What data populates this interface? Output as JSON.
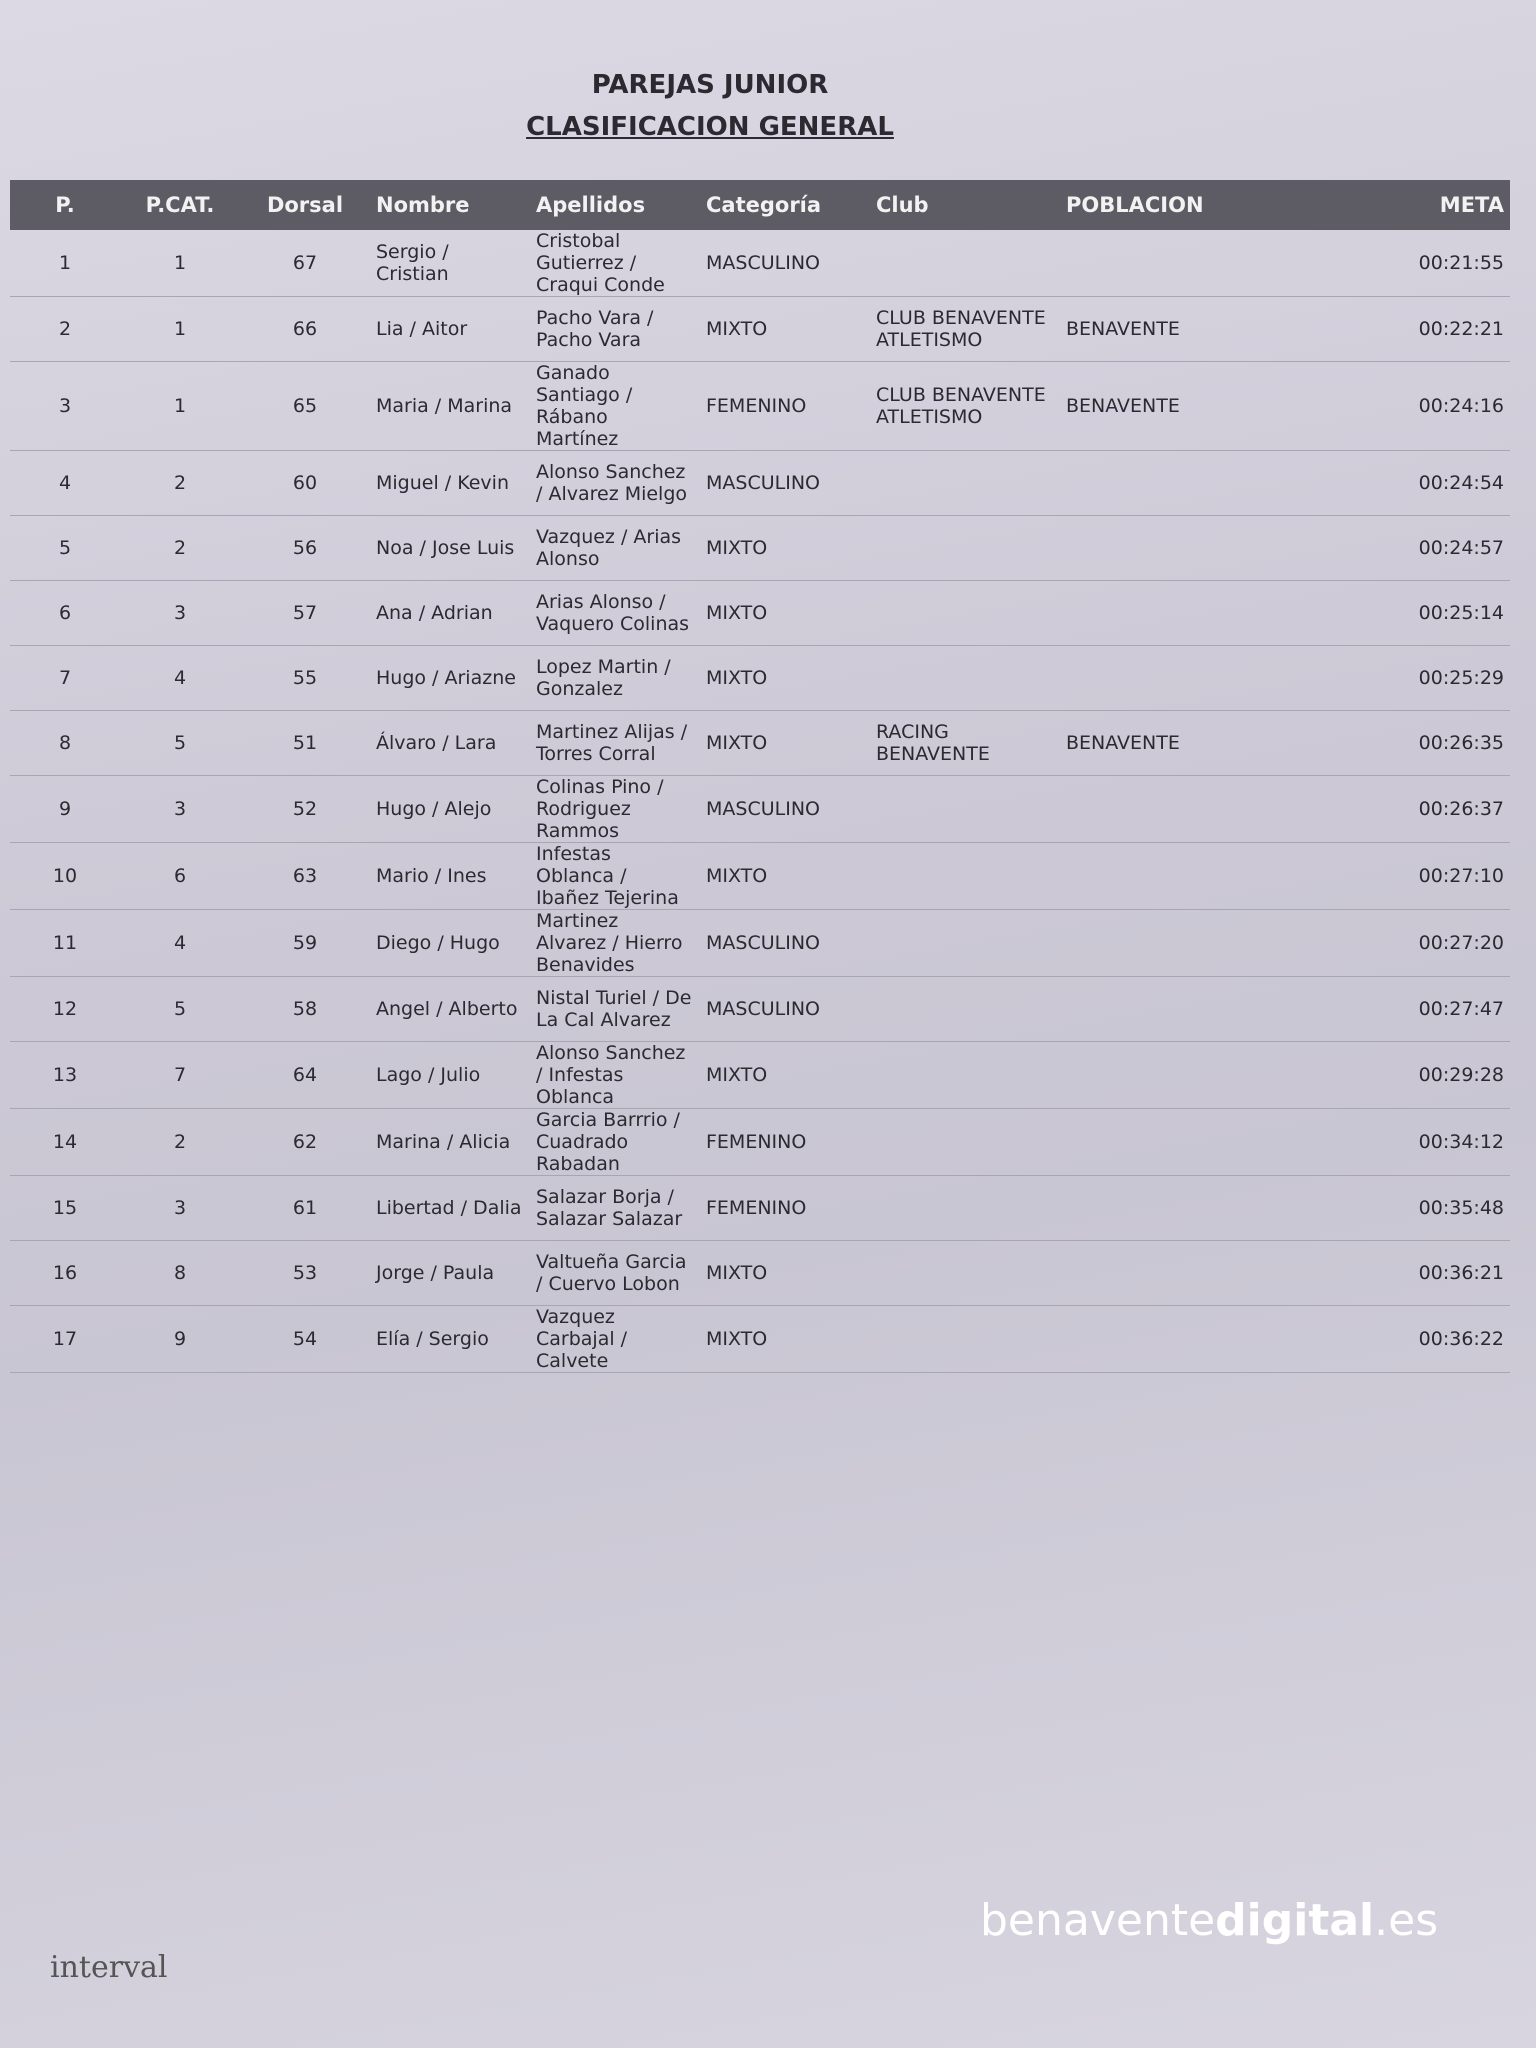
{
  "title": "PAREJAS JUNIOR",
  "subtitle": "CLASIFICACION GENERAL",
  "table": {
    "headers": [
      "P.",
      "P.CAT.",
      "Dorsal",
      "Nombre",
      "Apellidos",
      "Categoría",
      "Club",
      "POBLACION",
      "META"
    ],
    "rows": [
      {
        "p": 1,
        "pcat": 1,
        "dorsal": 67,
        "nombre": "Sergio / Cristian",
        "apellidos": "Cristobal Gutierrez / Craqui Conde",
        "categoria": "MASCULINO",
        "meta": "00:21:55"
      },
      {
        "p": 2,
        "pcat": 1,
        "dorsal": 66,
        "nombre": "Lia / Aitor",
        "apellidos": "Pacho Vara / Pacho Vara",
        "categoria": "MIXTO",
        "club": "CLUB BENAVENTE ATLETISMO",
        "poblacion": "BENAVENTE",
        "meta": "00:22:21"
      },
      {
        "p": 3,
        "pcat": 1,
        "dorsal": 65,
        "nombre": "Maria / Marina",
        "apellidos": "Ganado Santiago / Rábano Martínez",
        "categoria": "FEMENINO",
        "club": "CLUB BENAVENTE ATLETISMO",
        "poblacion": "BENAVENTE",
        "meta": "00:24:16"
      },
      {
        "p": 4,
        "pcat": 2,
        "dorsal": 60,
        "nombre": "Miguel / Kevin",
        "apellidos": "Alonso Sanchez / Alvarez Mielgo",
        "categoria": "MASCULINO",
        "meta": "00:24:54"
      },
      {
        "p": 5,
        "pcat": 2,
        "dorsal": 56,
        "nombre": "Noa / Jose Luis",
        "apellidos": "Vazquez / Arias Alonso",
        "categoria": "MIXTO",
        "meta": "00:24:57"
      },
      {
        "p": 6,
        "pcat": 3,
        "dorsal": 57,
        "nombre": "Ana / Adrian",
        "apellidos": "Arias Alonso / Vaquero Colinas",
        "categoria": "MIXTO",
        "meta": "00:25:14"
      },
      {
        "p": 7,
        "pcat": 4,
        "dorsal": 55,
        "nombre": "Hugo / Ariazne",
        "apellidos": "Lopez Martin / Gonzalez",
        "categoria": "MIXTO",
        "meta": "00:25:29"
      },
      {
        "p": 8,
        "pcat": 5,
        "dorsal": 51,
        "nombre": "Álvaro / Lara",
        "apellidos": "Martinez Alijas / Torres Corral",
        "categoria": "MIXTO",
        "club": "RACING BENAVENTE",
        "poblacion": "BENAVENTE",
        "meta": "00:26:35"
      },
      {
        "p": 9,
        "pcat": 3,
        "dorsal": 52,
        "nombre": "Hugo / Alejo",
        "apellidos": "Colinas Pino / Rodriguez Rammos",
        "categoria": "MASCULINO",
        "meta": "00:26:37"
      },
      {
        "p": 10,
        "pcat": 6,
        "dorsal": 63,
        "nombre": "Mario / Ines",
        "apellidos": "Infestas Oblanca / Ibañez Tejerina",
        "categoria": "MIXTO",
        "meta": "00:27:10"
      },
      {
        "p": 11,
        "pcat": 4,
        "dorsal": 59,
        "nombre": "Diego / Hugo",
        "apellidos": "Martinez Alvarez / Hierro Benavides",
        "categoria": "MASCULINO",
        "meta": "00:27:20"
      },
      {
        "p": 12,
        "pcat": 5,
        "dorsal": 58,
        "nombre": "Angel / Alberto",
        "apellidos": "Nistal Turiel / De La Cal Alvarez",
        "categoria": "MASCULINO",
        "meta": "00:27:47"
      },
      {
        "p": 13,
        "pcat": 7,
        "dorsal": 64,
        "nombre": "Lago / Julio",
        "apellidos": "Alonso Sanchez / Infestas Oblanca",
        "categoria": "MIXTO",
        "meta": "00:29:28"
      },
      {
        "p": 14,
        "pcat": 2,
        "dorsal": 62,
        "nombre": "Marina / Alicia",
        "apellidos": "Garcia Barrrio / Cuadrado Rabadan",
        "categoria": "FEMENINO",
        "meta": "00:34:12"
      },
      {
        "p": 15,
        "pcat": 3,
        "dorsal": 61,
        "nombre": "Libertad / Dalia",
        "apellidos": "Salazar Borja / Salazar Salazar",
        "categoria": "FEMENINO",
        "meta": "00:35:48"
      },
      {
        "p": 16,
        "pcat": 8,
        "dorsal": 53,
        "nombre": "Jorge / Paula",
        "apellidos": "Valtueña Garcia / Cuervo Lobon",
        "categoria": "MIXTO",
        "meta": "00:36:21"
      },
      {
        "p": 17,
        "pcat": 9,
        "dorsal": 54,
        "nombre": "Elía / Sergio",
        "apellidos": "Vazquez Carbajal / Calvete",
        "categoria": "MIXTO",
        "meta": "00:36:22"
      }
    ]
  },
  "logo": "interval",
  "watermark": {
    "pre": "benavente",
    "bold": "digital",
    "post": ".es"
  }
}
